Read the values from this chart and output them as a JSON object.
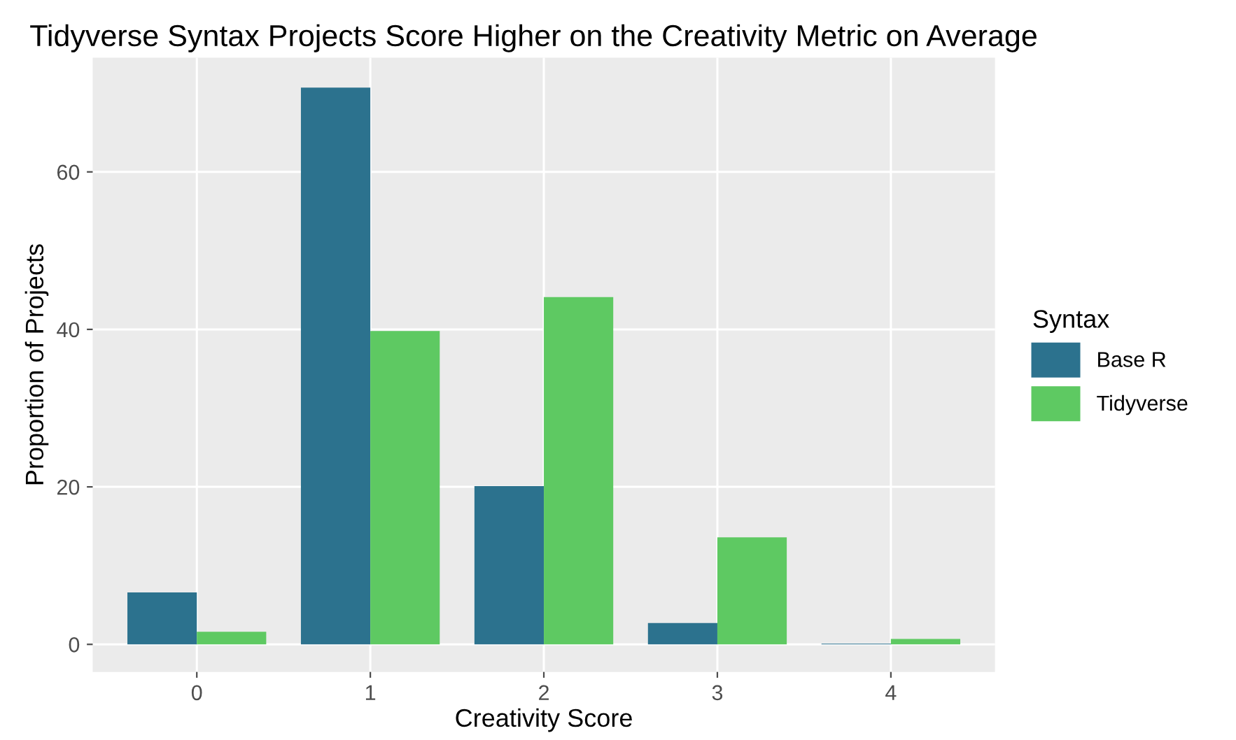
{
  "chart_data": {
    "type": "bar",
    "title": "Tidyverse Syntax Projects Score Higher on the Creativity Metric on Average",
    "xlabel": "Creativity Score",
    "ylabel": "Proportion of Projects",
    "legend_title": "Syntax",
    "categories": [
      "0",
      "1",
      "2",
      "3",
      "4"
    ],
    "series": [
      {
        "name": "Base R",
        "color": "#2c728e",
        "values": [
          6.6,
          70.7,
          20.1,
          2.7,
          0.1
        ]
      },
      {
        "name": "Tidyverse",
        "color": "#5ec962",
        "values": [
          1.6,
          39.8,
          44.1,
          13.6,
          0.7
        ]
      }
    ],
    "ylim": [
      -3.5,
      74.5
    ],
    "yticks": [
      0,
      20,
      40,
      60
    ],
    "grid": true,
    "legend": "right"
  }
}
